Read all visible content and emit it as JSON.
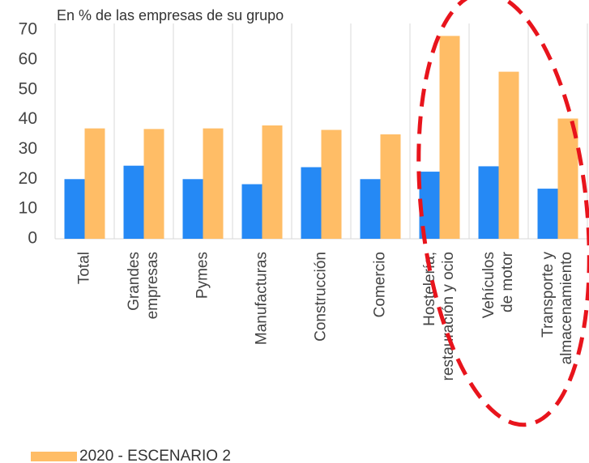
{
  "chart_data": {
    "type": "bar",
    "title": "En % de las empresas de su grupo",
    "categories": [
      "Total",
      "Grandes\nempresas",
      "Pymes",
      "Manufacturas",
      "Construcción",
      "Comercio",
      "Hostelería,\nrestauración y ocio",
      "Vehículos\nde motor",
      "Transporte y\nalmacenamiento"
    ],
    "series": [
      {
        "color": "#2589f5",
        "values": [
          20,
          24.5,
          20,
          18.3,
          24,
          20,
          22.5,
          24.3,
          16.8
        ]
      },
      {
        "name": "2020 - ESCENARIO 2",
        "color": "#ffbd66",
        "values": [
          37,
          36.8,
          37,
          38,
          36.5,
          35,
          68,
          56,
          40.3
        ]
      }
    ],
    "ylim": [
      0,
      70
    ],
    "yticks": [
      0,
      10,
      20,
      30,
      40,
      50,
      60,
      70
    ]
  }
}
